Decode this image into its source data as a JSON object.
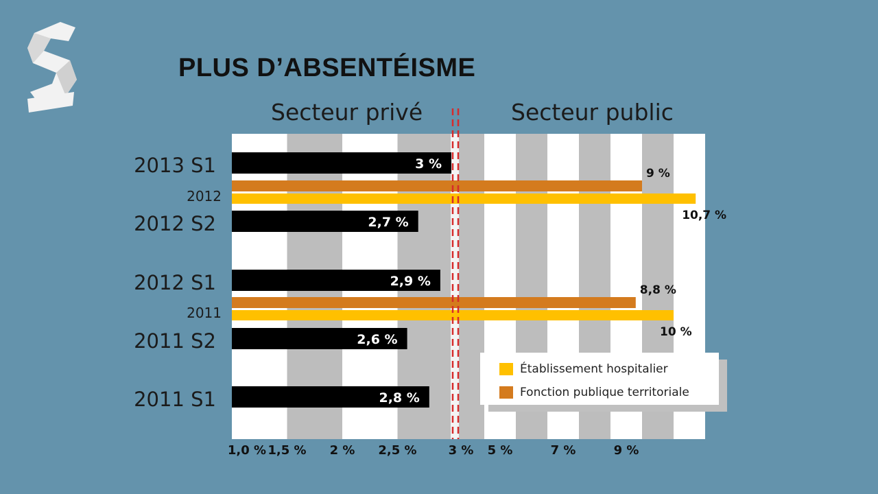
{
  "title": "PLUS D’ABSENTÉISME",
  "sections": {
    "private": "Secteur privé",
    "public": "Secteur public"
  },
  "colors": {
    "background": "#6493ac",
    "private_bar": "#000000",
    "hospital": "#ffc000",
    "territorial": "#d47b1e",
    "divider": "#d62b2b",
    "stripe_light": "#ffffff",
    "stripe_dark": "#bdbdbd"
  },
  "chart_data": {
    "type": "bar",
    "orientation": "horizontal",
    "title": "PLUS D’ABSENTÉISME",
    "axis": {
      "private_ticks": [
        "1,0 %",
        "1,5 %",
        "2 %",
        "2,5 %"
      ],
      "split_tick": "3 %",
      "public_ticks": [
        "5 %",
        "7 %",
        "9 %"
      ],
      "private_range": [
        1.0,
        3.0
      ],
      "public_range": [
        3.0,
        11.0
      ]
    },
    "private_series": [
      {
        "label": "2013 S1",
        "value": 3.0,
        "value_label": "3 %"
      },
      {
        "label": "2012 S2",
        "value": 2.7,
        "value_label": "2,7 %"
      },
      {
        "label": "2012 S1",
        "value": 2.9,
        "value_label": "2,9 %"
      },
      {
        "label": "2011 S2",
        "value": 2.6,
        "value_label": "2,6 %"
      },
      {
        "label": "2011 S1",
        "value": 2.8,
        "value_label": "2,8 %"
      }
    ],
    "public_groups": [
      {
        "year": "2012",
        "territorial": 9.0,
        "territorial_label": "9 %",
        "hospital": 10.7,
        "hospital_label": "10,7 %"
      },
      {
        "year": "2011",
        "territorial": 8.8,
        "territorial_label": "8,8 %",
        "hospital": 10.0,
        "hospital_label": "10 %"
      }
    ],
    "legend": [
      {
        "name": "Établissement hospitalier",
        "color": "#ffc000"
      },
      {
        "name": "Fonction publique territoriale",
        "color": "#d47b1e"
      }
    ],
    "legend_position": "bottom-right",
    "grid": true
  }
}
